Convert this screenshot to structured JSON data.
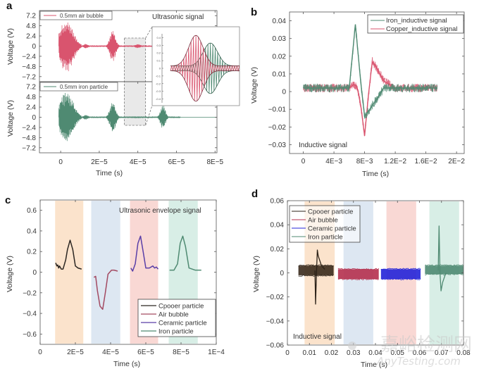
{
  "figure": {
    "watermark_text": "嘉峪检测网",
    "watermark_sub": "AnyTesting.com"
  },
  "chart_data": [
    {
      "panel": "a",
      "type": "line",
      "annotation": "Ultrasonic signal",
      "xlabel": "Time (s)",
      "ylabel": "Voltage (V)",
      "xlim": [
        -1.1e-05,
        8.1e-05
      ],
      "x_ticks": [
        0,
        2e-05,
        4e-05,
        6e-05,
        8e-05
      ],
      "x_tick_labels": [
        "0",
        "2E−5",
        "4E−5",
        "6E−5",
        "8E−5"
      ],
      "ylim": [
        -8.4,
        8.4
      ],
      "y_ticks": [
        7.2,
        4.8,
        2.4,
        0,
        -2.4,
        -4.8,
        -7.2
      ],
      "y_tick_labels": [
        "7.2",
        "4.8",
        "2.4",
        "0",
        "−2.4",
        "−4.8",
        "−7.2"
      ],
      "subplots": [
        {
          "legend": "0.5mm air bubble",
          "color": "#d9546e",
          "bursts": [
            {
              "center": 3e-06,
              "halfwidth": 6e-06,
              "amplitude": 6.4
            },
            {
              "center": 1.3e-05,
              "halfwidth": 2e-06,
              "amplitude": 0.6
            },
            {
              "center": 2.7e-05,
              "halfwidth": 2.6e-06,
              "amplitude": 3.8
            },
            {
              "center": 4e-05,
              "halfwidth": 2.5e-06,
              "amplitude": 0.5
            }
          ]
        },
        {
          "legend": "0.5mm iron particle",
          "color": "#4f8a72",
          "bursts": [
            {
              "center": 3e-06,
              "halfwidth": 6e-06,
              "amplitude": 6.4
            },
            {
              "center": 1.3e-05,
              "halfwidth": 2e-06,
              "amplitude": 0.6
            },
            {
              "center": 2.7e-05,
              "halfwidth": 2.6e-06,
              "amplitude": 3.8
            },
            {
              "center": 4e-05,
              "halfwidth": 2.5e-06,
              "amplitude": 0.2
            },
            {
              "center": 5.3e-05,
              "halfwidth": 2.2e-06,
              "amplitude": 3.0
            }
          ]
        }
      ],
      "zoom_region_x": [
        3.3e-05,
        4.4e-05
      ],
      "inset": {
        "y_ticks": [
          0.4,
          0.3,
          0.2,
          0.1,
          0,
          -0.1,
          -0.2,
          -0.3,
          -0.4
        ],
        "y_tick_labels": [
          "0.4",
          "0.3",
          "0.2",
          "0.1",
          "0",
          "-0.1",
          "-0.2",
          "-0.3",
          "-0.4"
        ],
        "series": [
          {
            "name": "air bubble",
            "color": "#d9546e",
            "peak_position": 0.35,
            "amplitude": 0.4
          },
          {
            "name": "iron particle",
            "color": "#4f8a72",
            "peak_position": 0.55,
            "amplitude": 0.3
          }
        ]
      }
    },
    {
      "panel": "b",
      "type": "line",
      "annotation": "Inductive signal",
      "xlabel": "Time (s)",
      "ylabel": "Voltage (V)",
      "xlim": [
        -0.0018,
        0.021
      ],
      "x_ticks": [
        0,
        0.004,
        0.008,
        0.012,
        0.016,
        0.02
      ],
      "x_tick_labels": [
        "0",
        "4E−3",
        "8E−3",
        "1.2E−2",
        "1.6E−2",
        "2E−2"
      ],
      "ylim": [
        -0.035,
        0.045
      ],
      "y_ticks": [
        0.04,
        0.03,
        0.02,
        0.01,
        0,
        -0.01,
        -0.02,
        -0.03
      ],
      "y_tick_labels": [
        "0.04",
        "0.03",
        "0.02",
        "0.01",
        "0",
        "−0.01",
        "−0.02",
        "−0.03"
      ],
      "legend_position": "top-right",
      "series": [
        {
          "name": "Iron_inductive signal",
          "color": "#4f8a72",
          "baseline": 0.002,
          "noise": 0.003,
          "points": [
            [
              0,
              0.002
            ],
            [
              0.006,
              0.002
            ],
            [
              0.0068,
              0.038
            ],
            [
              0.0075,
              0.005
            ],
            [
              0.008,
              -0.014
            ],
            [
              0.009,
              -0.008
            ],
            [
              0.0105,
              0.002
            ],
            [
              0.0175,
              0.002
            ]
          ]
        },
        {
          "name": "Copper_inductive signal",
          "color": "#d9546e",
          "baseline": 0.002,
          "noise": 0.003,
          "points": [
            [
              0,
              0.002
            ],
            [
              0.006,
              0.002
            ],
            [
              0.0066,
              0.004
            ],
            [
              0.007,
              0.003
            ],
            [
              0.0075,
              -0.008
            ],
            [
              0.008,
              -0.025
            ],
            [
              0.0085,
              -0.002
            ],
            [
              0.009,
              0.017
            ],
            [
              0.0095,
              0.014
            ],
            [
              0.0105,
              0.006
            ],
            [
              0.012,
              0.002
            ],
            [
              0.0175,
              0.002
            ]
          ]
        }
      ]
    },
    {
      "panel": "c",
      "type": "line",
      "annotation": "Ultrasonic envelope signal",
      "xlabel": "Time (s)",
      "ylabel": "Voltage (V)",
      "xlim": [
        0,
        0.0001
      ],
      "x_ticks": [
        0,
        2e-05,
        4e-05,
        6e-05,
        8e-05,
        0.0001
      ],
      "x_tick_labels": [
        "0",
        "2E−5",
        "4E−5",
        "6E−5",
        "8E−5",
        "1E−4"
      ],
      "ylim": [
        -0.7,
        0.7
      ],
      "y_ticks": [
        0.6,
        0.4,
        0.2,
        0,
        -0.2,
        -0.4,
        -0.6
      ],
      "y_tick_labels": [
        "0.6",
        "0.4",
        "0.2",
        "0",
        "−0.2",
        "−0.4",
        "−0.6"
      ],
      "legend_position": "bottom-right",
      "bands": [
        {
          "x": [
            8.5e-06,
            2.45e-05
          ],
          "color": "#fbe3cc"
        },
        {
          "x": [
            2.9e-05,
            4.55e-05
          ],
          "color": "#dde7f2"
        },
        {
          "x": [
            5.1e-05,
            6.7e-05
          ],
          "color": "#f9d8d4"
        },
        {
          "x": [
            7.3e-05,
            8.95e-05
          ],
          "color": "#d8eee6"
        }
      ],
      "series": [
        {
          "name": "Cpooer particle",
          "color": "#2b2622",
          "points": [
            [
              8.8e-06,
              0.09
            ],
            [
              9.5e-06,
              0.06
            ],
            [
              1e-05,
              0.07
            ],
            [
              1.05e-05,
              0.04
            ],
            [
              1.1e-05,
              0.06
            ],
            [
              1.2e-05,
              0.03
            ],
            [
              1.3e-05,
              0.03
            ],
            [
              1.45e-05,
              0.12
            ],
            [
              1.55e-05,
              0.22
            ],
            [
              1.7e-05,
              0.31
            ],
            [
              1.85e-05,
              0.22
            ],
            [
              2e-05,
              0.06
            ],
            [
              2.15e-05,
              0.04
            ],
            [
              2.35e-05,
              0.03
            ]
          ]
        },
        {
          "name": "Air bubble",
          "color": "#a34a62",
          "points": [
            [
              3.05e-05,
              -0.05
            ],
            [
              3.15e-05,
              -0.04
            ],
            [
              3.25e-05,
              -0.18
            ],
            [
              3.4e-05,
              -0.33
            ],
            [
              3.55e-05,
              -0.36
            ],
            [
              3.7e-05,
              -0.2
            ],
            [
              3.85e-05,
              -0.02
            ],
            [
              4.05e-05,
              0.02
            ],
            [
              4.2e-05,
              0.02
            ],
            [
              4.4e-05,
              0.01
            ]
          ]
        },
        {
          "name": "Ceramic particle",
          "color": "#5a3fa8",
          "points": [
            [
              5.15e-05,
              0.04
            ],
            [
              5.25e-05,
              0.01
            ],
            [
              5.4e-05,
              0.08
            ],
            [
              5.55e-05,
              0.28
            ],
            [
              5.7e-05,
              0.35
            ],
            [
              5.85e-05,
              0.2
            ],
            [
              6e-05,
              0.04
            ],
            [
              6.2e-05,
              0.04
            ],
            [
              6.4e-05,
              0.06
            ],
            [
              6.5e-05,
              0.04
            ],
            [
              6.6e-05,
              0.05
            ],
            [
              6.7e-05,
              0.03
            ]
          ]
        },
        {
          "name": "Iron particle",
          "color": "#4f8a72",
          "points": [
            [
              7.35e-05,
              0.02
            ],
            [
              7.6e-05,
              0.02
            ],
            [
              7.8e-05,
              0.08
            ],
            [
              7.95e-05,
              0.28
            ],
            [
              8.1e-05,
              0.35
            ],
            [
              8.25e-05,
              0.25
            ],
            [
              8.45e-05,
              0.04
            ],
            [
              8.8e-05,
              0.02
            ],
            [
              9.15e-05,
              0.02
            ]
          ]
        }
      ]
    },
    {
      "panel": "d",
      "type": "line",
      "annotation": "Inductive signal",
      "xlabel": "Time (s)",
      "ylabel": "Voltage (V)",
      "xlim": [
        0,
        0.08
      ],
      "x_ticks": [
        0,
        0.01,
        0.02,
        0.03,
        0.04,
        0.05,
        0.06,
        0.07,
        0.08
      ],
      "x_tick_labels": [
        "0",
        "0.01",
        "0.02",
        "0.03",
        "0.04",
        "0.05",
        "0.06",
        "0.07",
        "0.08"
      ],
      "ylim": [
        -0.06,
        0.06
      ],
      "y_ticks": [
        0.06,
        0.04,
        0.02,
        0,
        -0.02,
        -0.04,
        -0.06
      ],
      "y_tick_labels": [
        "0.06",
        "0.04",
        "0.02",
        "0",
        "−0.02",
        "−0.04",
        "−0.06"
      ],
      "legend_position": "top-left",
      "bands": [
        {
          "x": [
            0.0078,
            0.0215
          ],
          "color": "#fbe3cc"
        },
        {
          "x": [
            0.0255,
            0.039
          ],
          "color": "#dde7f2"
        },
        {
          "x": [
            0.045,
            0.0585
          ],
          "color": "#f9d8d4"
        },
        {
          "x": [
            0.0645,
            0.078
          ],
          "color": "#d8eee6"
        }
      ],
      "series": [
        {
          "name": "Cpooer particle",
          "color": "#2b2117",
          "fill_color": "#3a2a1c",
          "x_range": [
            0.005,
            0.021
          ],
          "band": [
            -0.002,
            0.006
          ],
          "spike_points": [
            [
              0.0125,
              0.002
            ],
            [
              0.0128,
              -0.026
            ],
            [
              0.0132,
              0.0
            ],
            [
              0.0136,
              0.019
            ],
            [
              0.014,
              0.014
            ],
            [
              0.0155,
              0.006
            ],
            [
              0.017,
              0.003
            ]
          ]
        },
        {
          "name": "Air bubble",
          "color": "#b5304e",
          "fill_color": "#b5304e",
          "x_range": [
            0.023,
            0.0415
          ],
          "band": [
            -0.005,
            0.003
          ]
        },
        {
          "name": "Ceramic particle",
          "color": "#2424d8",
          "fill_color": "#2424d8",
          "x_range": [
            0.0425,
            0.0605
          ],
          "band": [
            -0.005,
            0.003
          ]
        },
        {
          "name": "Iron particle",
          "color": "#4f8a72",
          "fill_color": "#4f8a72",
          "x_range": [
            0.0625,
            0.081
          ],
          "band": [
            -0.001,
            0.006
          ],
          "spike_points": [
            [
              0.0685,
              0.002
            ],
            [
              0.0689,
              0.039
            ],
            [
              0.0693,
              0.0
            ],
            [
              0.0698,
              -0.015
            ],
            [
              0.0705,
              -0.008
            ],
            [
              0.072,
              0.0
            ]
          ]
        }
      ]
    }
  ]
}
